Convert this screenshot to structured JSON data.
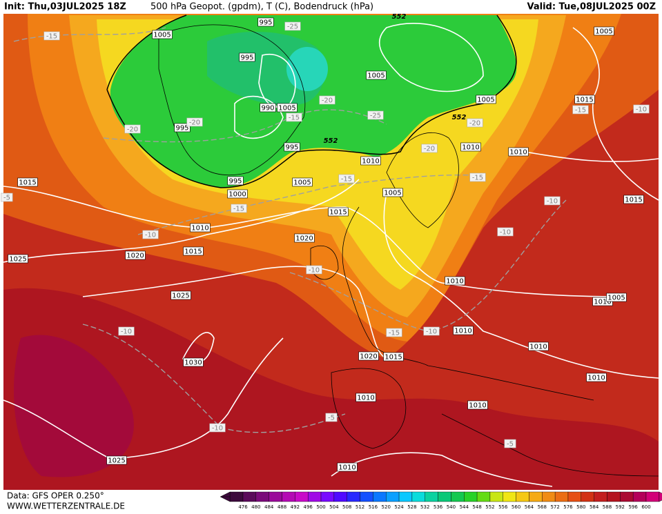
{
  "header": {
    "init": "Init: Thu,03JUL2025 18Z",
    "title": "500 hPa Geopot. (gpdm), T (C), Bodendruck (hPa)",
    "valid": "Valid: Tue,08JUL2025 00Z"
  },
  "footer": {
    "data": "Data: GFS OPER 0.250°",
    "site": "WWW.WETTERZENTRALE.DE"
  },
  "scale": {
    "labels": [
      "476",
      "480",
      "484",
      "488",
      "492",
      "496",
      "500",
      "504",
      "508",
      "512",
      "516",
      "520",
      "524",
      "528",
      "532",
      "536",
      "540",
      "544",
      "548",
      "552",
      "556",
      "560",
      "564",
      "568",
      "572",
      "576",
      "580",
      "584",
      "588",
      "592",
      "596",
      "600"
    ]
  },
  "isobar_labels": [
    "995",
    "1005",
    "995",
    "1005",
    "990",
    "1005",
    "995",
    "1005",
    "995",
    "1010",
    "1010",
    "1010",
    "995",
    "1005",
    "1000",
    "1005",
    "1015",
    "1015",
    "1010",
    "1020",
    "1015",
    "1020",
    "1025",
    "1025",
    "1010",
    "1010",
    "1005",
    "1010",
    "1010",
    "1030",
    "1020",
    "1015",
    "1010",
    "1010",
    "1010",
    "1025",
    "1010",
    "1005",
    "1015",
    "1015"
  ],
  "temperature_labels": [
    "-15",
    "-25",
    "-20",
    "-25",
    "-15",
    "-20",
    "-20",
    "-20",
    "-20",
    "-15",
    "-15",
    "-15",
    "-10",
    "-10",
    "-10",
    "-10",
    "-15",
    "-10",
    "-10",
    "-10",
    "-5",
    "-5",
    "-10",
    "-15",
    "-5"
  ],
  "contour_labels": [
    "552",
    "552",
    "552"
  ]
}
